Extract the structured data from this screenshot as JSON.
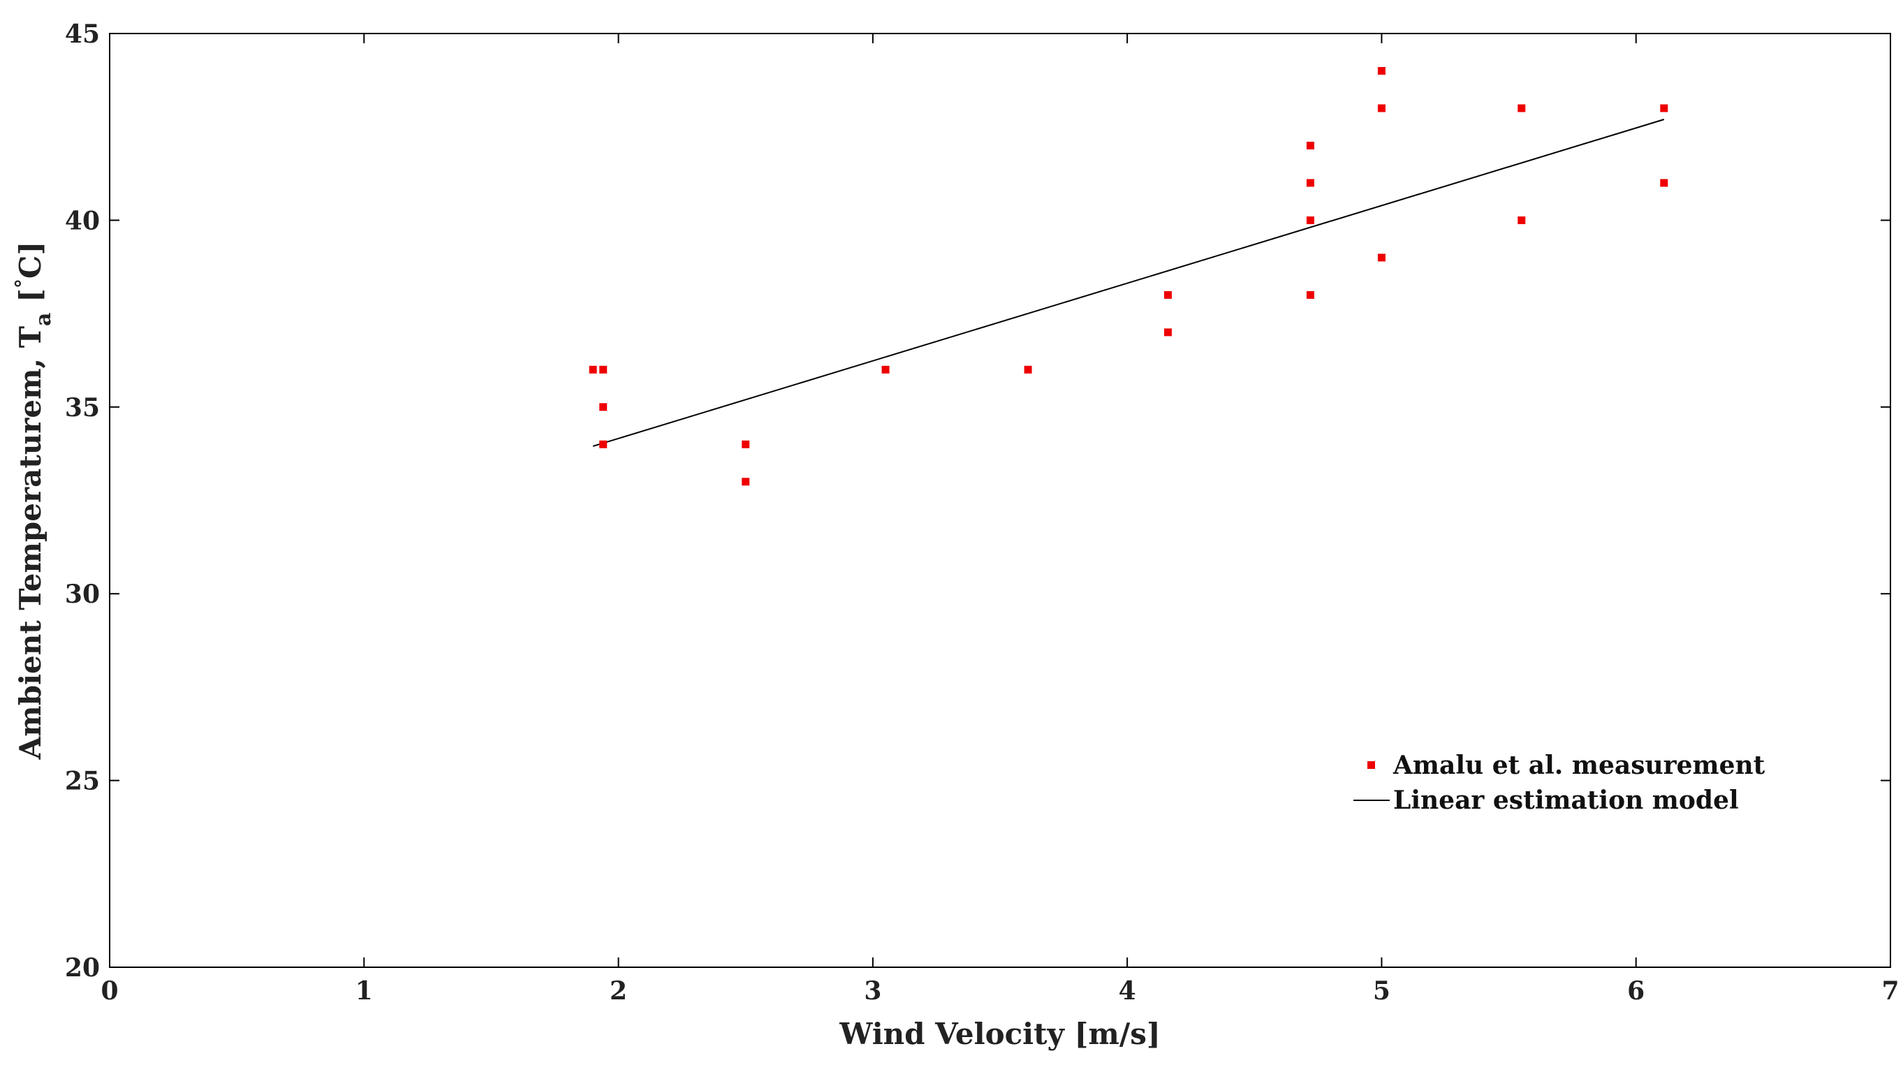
{
  "chart_data": {
    "type": "scatter",
    "title": "",
    "xlabel": "Wind Velocity [m/s]",
    "ylabel_main": "Ambient Temperaturem, T",
    "ylabel_sub": "a",
    "ylabel_unit_open": " [",
    "ylabel_degree": "°",
    "ylabel_unit_close": "C]",
    "xlim": [
      0,
      7
    ],
    "ylim": [
      20,
      45
    ],
    "x_ticks": [
      0,
      1,
      2,
      3,
      4,
      5,
      6,
      7
    ],
    "y_ticks": [
      20,
      25,
      30,
      35,
      40,
      45
    ],
    "grid": false,
    "legend_position": "right-middle",
    "series": [
      {
        "name": "Amalu et al. measurement",
        "kind": "scatter",
        "color": "#ee0000",
        "points": [
          [
            1.9,
            36
          ],
          [
            1.94,
            36
          ],
          [
            1.94,
            35
          ],
          [
            1.94,
            34
          ],
          [
            2.5,
            34
          ],
          [
            2.5,
            33
          ],
          [
            3.05,
            36
          ],
          [
            3.61,
            36
          ],
          [
            4.16,
            38
          ],
          [
            4.16,
            37
          ],
          [
            4.72,
            42
          ],
          [
            4.72,
            41
          ],
          [
            4.72,
            40
          ],
          [
            4.72,
            38
          ],
          [
            5.0,
            44
          ],
          [
            5.0,
            43
          ],
          [
            5.0,
            39
          ],
          [
            5.55,
            43
          ],
          [
            5.55,
            40
          ],
          [
            6.11,
            43
          ],
          [
            6.11,
            41
          ]
        ]
      },
      {
        "name": "Linear estimation model",
        "kind": "line",
        "color": "#000000",
        "points": [
          [
            1.9,
            33.95
          ],
          [
            6.11,
            42.7
          ]
        ]
      }
    ]
  }
}
